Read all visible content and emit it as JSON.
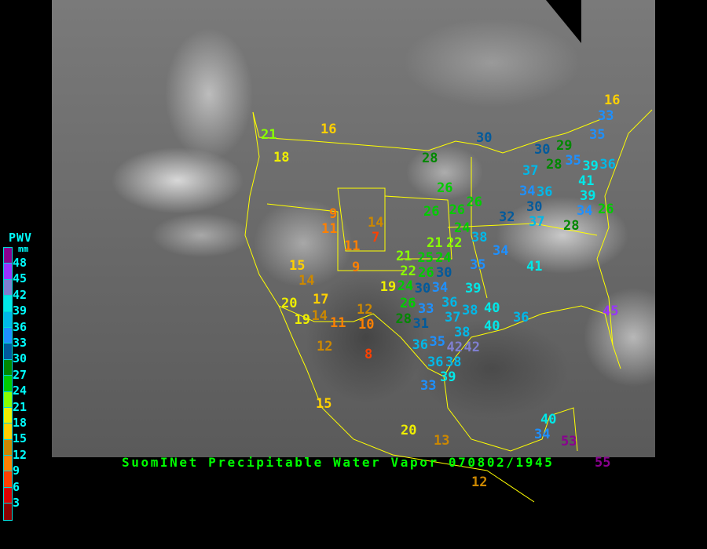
{
  "title": "SuomINet Precipitable Water Vapor 070802/1945",
  "legend": {
    "title": "PWV",
    "unit": "mm",
    "ticks": [
      "48",
      "45",
      "42",
      "39",
      "36",
      "33",
      "30",
      "27",
      "24",
      "21",
      "18",
      "15",
      "12",
      "9",
      "6",
      "3"
    ],
    "colors": [
      "#8a0090",
      "#9933ff",
      "#7f7fd0",
      "#00e8e8",
      "#00b8e8",
      "#1e90ff",
      "#005a9c",
      "#008800",
      "#00cc00",
      "#88ff00",
      "#eeee00",
      "#ffd000",
      "#cc8800",
      "#ff8000",
      "#ff4000",
      "#dd0000",
      "#8b0000"
    ]
  },
  "boundary_color": "#ffff00",
  "stations": [
    "16",
    "33",
    "35",
    "30",
    "29",
    "35",
    "28",
    "37",
    "36",
    "39",
    "41",
    "39",
    "34",
    "26",
    "34",
    "36",
    "30",
    "37",
    "32",
    "28",
    "30",
    "28",
    "26",
    "26",
    "26",
    "26",
    "24",
    "38",
    "34",
    "35",
    "41",
    "21",
    "22",
    "21",
    "25",
    "24",
    "22",
    "26",
    "30",
    "19",
    "24",
    "30",
    "34",
    "39",
    "36",
    "26",
    "38",
    "40",
    "33",
    "37",
    "36",
    "28",
    "31",
    "38",
    "40",
    "42",
    "36",
    "35",
    "42",
    "36",
    "38",
    "39",
    "33",
    "45",
    "40",
    "34",
    "53",
    "55",
    "12",
    "13",
    "20",
    "15",
    "8",
    "12",
    "10",
    "12",
    "11",
    "14",
    "19",
    "17",
    "20",
    "14",
    "15",
    "9",
    "11",
    "14",
    "7",
    "9",
    "11",
    "16",
    "18",
    "21"
  ]
}
